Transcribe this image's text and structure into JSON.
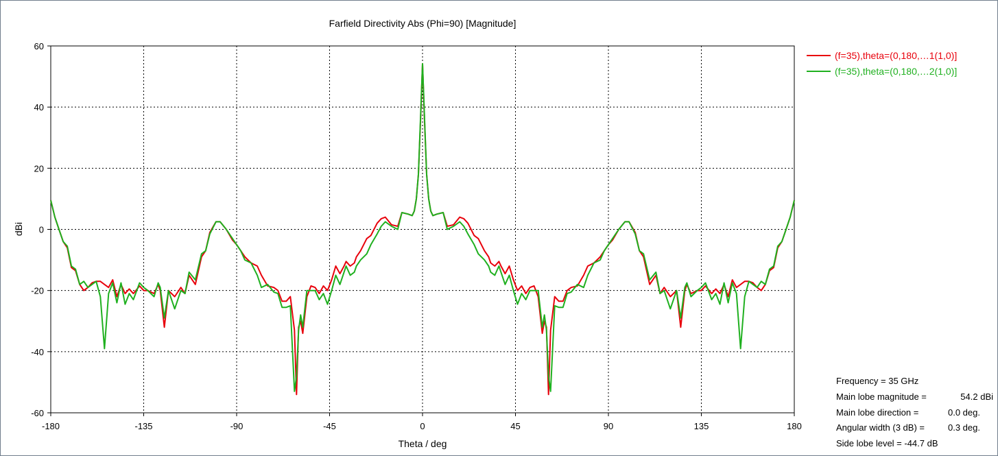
{
  "chart_data": {
    "type": "line",
    "title": "Farfield Directivity Abs (Phi=90) [Magnitude]",
    "xlabel": "Theta / deg",
    "ylabel": "dBi",
    "xlim": [
      -180,
      180
    ],
    "ylim": [
      -60,
      60
    ],
    "xticks": [
      -180,
      -135,
      -90,
      -45,
      0,
      45,
      90,
      135,
      180
    ],
    "yticks": [
      -60,
      -40,
      -20,
      0,
      20,
      40,
      60
    ],
    "grid": true,
    "legend_position": "top-right, outside plot",
    "series": [
      {
        "name": "(f=35),theta=(0,180,…1(1,0)]",
        "color": "#e8000b",
        "x": [
          0,
          1,
          2,
          3,
          4,
          5,
          7,
          10,
          12,
          15,
          18,
          20,
          22,
          25,
          27,
          30,
          32,
          33,
          35,
          37,
          38,
          40,
          42,
          44,
          46,
          48,
          50,
          52,
          54,
          56,
          58,
          59,
          60,
          61,
          62,
          64,
          66,
          68,
          70,
          72,
          75,
          78,
          80,
          83,
          86,
          88,
          90,
          92,
          95,
          98,
          100,
          103,
          105,
          107,
          110,
          113,
          115,
          117,
          120,
          123,
          125,
          127,
          128,
          130,
          133,
          135,
          137,
          140,
          142,
          144,
          146,
          148,
          150,
          152,
          154,
          156,
          158,
          160,
          162,
          164,
          166,
          168,
          170,
          172,
          174,
          176,
          178,
          180
        ],
        "y": [
          54.2,
          35,
          18,
          10,
          6,
          4.5,
          5,
          5.5,
          1,
          1.5,
          4,
          3.5,
          2,
          -2,
          -3,
          -7,
          -9,
          -11,
          -12,
          -10.5,
          -12,
          -14.5,
          -12,
          -16.5,
          -20,
          -18.5,
          -21,
          -19,
          -18.5,
          -22,
          -34,
          -30,
          -32,
          -54,
          -33,
          -22,
          -23.5,
          -23.5,
          -20,
          -19,
          -18.5,
          -15,
          -12,
          -11,
          -9,
          -7,
          -5,
          -3.5,
          0,
          2.5,
          2.5,
          -1,
          -7,
          -9,
          -18,
          -15,
          -21,
          -19,
          -22,
          -20,
          -32,
          -20,
          -18,
          -21,
          -20,
          -20,
          -18.5,
          -21,
          -19.5,
          -21,
          -18,
          -22,
          -16.5,
          -19,
          -18,
          -17,
          -17,
          -17.5,
          -19,
          -20,
          -18,
          -13.5,
          -12.5,
          -6,
          -4,
          0,
          4,
          9.5
        ],
        "note_symmetric": true
      },
      {
        "name": "(f=35),theta=(0,180,…2(1,0)]",
        "color": "#1fb01f",
        "x": [
          0,
          1,
          2,
          3,
          4,
          5,
          7,
          10,
          12,
          15,
          18,
          20,
          22,
          25,
          27,
          30,
          32,
          33,
          35,
          37,
          38,
          40,
          42,
          44,
          46,
          48,
          50,
          52,
          54,
          56,
          58,
          59,
          60,
          61,
          62,
          64,
          66,
          68,
          70,
          72,
          75,
          78,
          80,
          83,
          86,
          88,
          90,
          92,
          95,
          98,
          100,
          103,
          105,
          107,
          110,
          113,
          115,
          117,
          120,
          123,
          125,
          127,
          128,
          130,
          133,
          135,
          137,
          140,
          142,
          144,
          146,
          148,
          150,
          152,
          154,
          156,
          158,
          160,
          162,
          164,
          166,
          168,
          170,
          172,
          174,
          176,
          178,
          180
        ],
        "y": [
          54.2,
          36,
          18,
          10,
          6,
          4.5,
          5,
          5.5,
          0,
          1,
          2.5,
          1,
          -1.5,
          -5,
          -8,
          -10,
          -12,
          -14,
          -15,
          -12,
          -14,
          -18,
          -15,
          -20,
          -24.5,
          -21,
          -23,
          -20,
          -20,
          -20,
          -32,
          -28,
          -33,
          -48,
          -53,
          -25,
          -25.5,
          -25.5,
          -21,
          -20.5,
          -18,
          -19,
          -15,
          -11,
          -10,
          -7,
          -5,
          -3,
          0,
          2.5,
          2.5,
          -1.5,
          -7,
          -8,
          -16.5,
          -14,
          -21,
          -20,
          -26,
          -20,
          -29,
          -19,
          -17.5,
          -22,
          -20,
          -19,
          -17.5,
          -23,
          -21,
          -24.5,
          -17.5,
          -24,
          -17.5,
          -21,
          -39,
          -22,
          -17,
          -18,
          -19,
          -17,
          -18,
          -13,
          -12,
          -5.5,
          -4,
          0,
          4,
          9.5
        ],
        "note_symmetric": true
      }
    ],
    "info": {
      "frequency": "Frequency = 35 GHz",
      "main_lobe_magnitude_label": "Main lobe magnitude =",
      "main_lobe_magnitude_value": "54.2 dBi",
      "main_lobe_direction_label": "Main lobe direction =",
      "main_lobe_direction_value": "0.0 deg.",
      "angular_width_label": "Angular width (3 dB) =",
      "angular_width_value": "0.3 deg.",
      "side_lobe_level": "Side lobe level =  -44.7 dB"
    }
  }
}
